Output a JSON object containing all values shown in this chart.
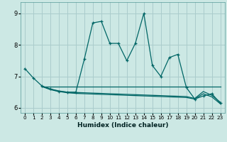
{
  "title": "",
  "xlabel": "Humidex (Indice chaleur)",
  "xlim": [
    -0.5,
    23.5
  ],
  "ylim": [
    5.85,
    9.35
  ],
  "yticks": [
    6,
    7,
    8,
    9
  ],
  "xticks": [
    0,
    1,
    2,
    3,
    4,
    5,
    6,
    7,
    8,
    9,
    10,
    11,
    12,
    13,
    14,
    15,
    16,
    17,
    18,
    19,
    20,
    21,
    22,
    23
  ],
  "bg_color": "#cce8e4",
  "grid_color": "#aacccc",
  "line_color": "#006666",
  "series0_x": [
    0,
    1,
    2,
    3,
    4,
    5,
    6,
    7,
    8,
    9,
    10,
    11,
    12,
    13,
    14,
    15,
    16,
    17,
    18,
    19,
    20,
    21,
    22,
    23
  ],
  "series0_y": [
    7.25,
    6.95,
    6.7,
    6.6,
    6.52,
    6.5,
    6.5,
    7.55,
    8.7,
    8.75,
    8.05,
    8.05,
    7.5,
    8.05,
    9.0,
    7.35,
    7.0,
    7.6,
    7.7,
    6.65,
    6.28,
    6.38,
    6.45,
    6.15
  ],
  "series1_x": [
    2,
    3,
    4,
    5,
    6,
    7,
    8,
    9,
    10,
    11,
    12,
    13,
    14,
    15,
    16,
    17,
    18,
    19,
    20,
    21,
    22,
    23
  ],
  "series1_y": [
    6.68,
    6.58,
    6.52,
    6.48,
    6.46,
    6.45,
    6.44,
    6.43,
    6.42,
    6.41,
    6.4,
    6.39,
    6.38,
    6.37,
    6.36,
    6.35,
    6.34,
    6.33,
    6.28,
    6.45,
    6.35,
    6.13
  ],
  "series2_x": [
    2,
    3,
    4,
    5,
    6,
    7,
    8,
    9,
    10,
    11,
    12,
    13,
    14,
    15,
    16,
    17,
    18,
    19,
    20,
    21,
    22,
    23
  ],
  "series2_y": [
    6.68,
    6.6,
    6.54,
    6.5,
    6.49,
    6.48,
    6.47,
    6.46,
    6.45,
    6.44,
    6.43,
    6.42,
    6.41,
    6.4,
    6.39,
    6.38,
    6.37,
    6.36,
    6.3,
    6.52,
    6.4,
    6.18
  ],
  "series3_x": [
    2,
    3,
    4,
    5,
    6,
    7,
    8,
    9,
    10,
    11,
    12,
    13,
    14,
    15,
    16,
    17,
    18,
    19,
    20,
    21,
    22,
    23
  ],
  "series3_y": [
    6.68,
    6.68,
    6.68,
    6.68,
    6.68,
    6.68,
    6.68,
    6.68,
    6.68,
    6.68,
    6.68,
    6.68,
    6.68,
    6.68,
    6.68,
    6.68,
    6.68,
    6.68,
    6.68,
    6.68,
    6.68,
    6.68
  ]
}
